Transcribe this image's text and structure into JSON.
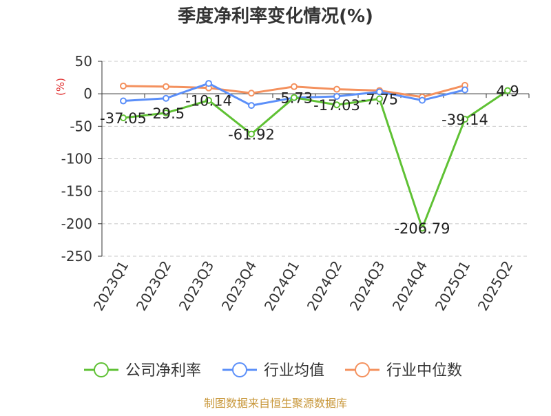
{
  "chart_data": {
    "type": "line",
    "title": "季度净利率变化情况(%)",
    "ylabel": "(%)",
    "xlabel": "",
    "ylim": [
      -250,
      50
    ],
    "yticks": [
      50,
      0,
      -50,
      -100,
      -150,
      -200,
      -250
    ],
    "grid": true,
    "legend_position": "bottom",
    "categories": [
      "2023Q1",
      "2023Q2",
      "2023Q3",
      "2023Q4",
      "2024Q1",
      "2024Q2",
      "2024Q3",
      "2024Q4",
      "2025Q1",
      "2025Q2"
    ],
    "series": [
      {
        "name": "公司净利率",
        "color": "#5fc134",
        "values": [
          -37.05,
          -29.5,
          -10.14,
          -61.92,
          -5.73,
          -17.03,
          -7.75,
          -206.79,
          -39.14,
          4.9
        ],
        "labels": [
          "-37.05",
          "-29.5",
          "-10.14",
          "-61.92",
          "-5.73",
          "-17.03",
          "-7.75",
          "-206.79",
          "-39.14",
          "4.9"
        ]
      },
      {
        "name": "行业均值",
        "color": "#5b8ff9",
        "values": [
          -11,
          -7,
          16,
          -18,
          -6,
          -4,
          3,
          -10,
          6,
          null
        ]
      },
      {
        "name": "行业中位数",
        "color": "#f4915e",
        "values": [
          12,
          11,
          9,
          1,
          11,
          7,
          5,
          -5,
          13,
          null
        ]
      }
    ]
  },
  "footer": {
    "source": "制图数据来自恒生聚源数据库",
    "source_color": "#c8973a"
  }
}
